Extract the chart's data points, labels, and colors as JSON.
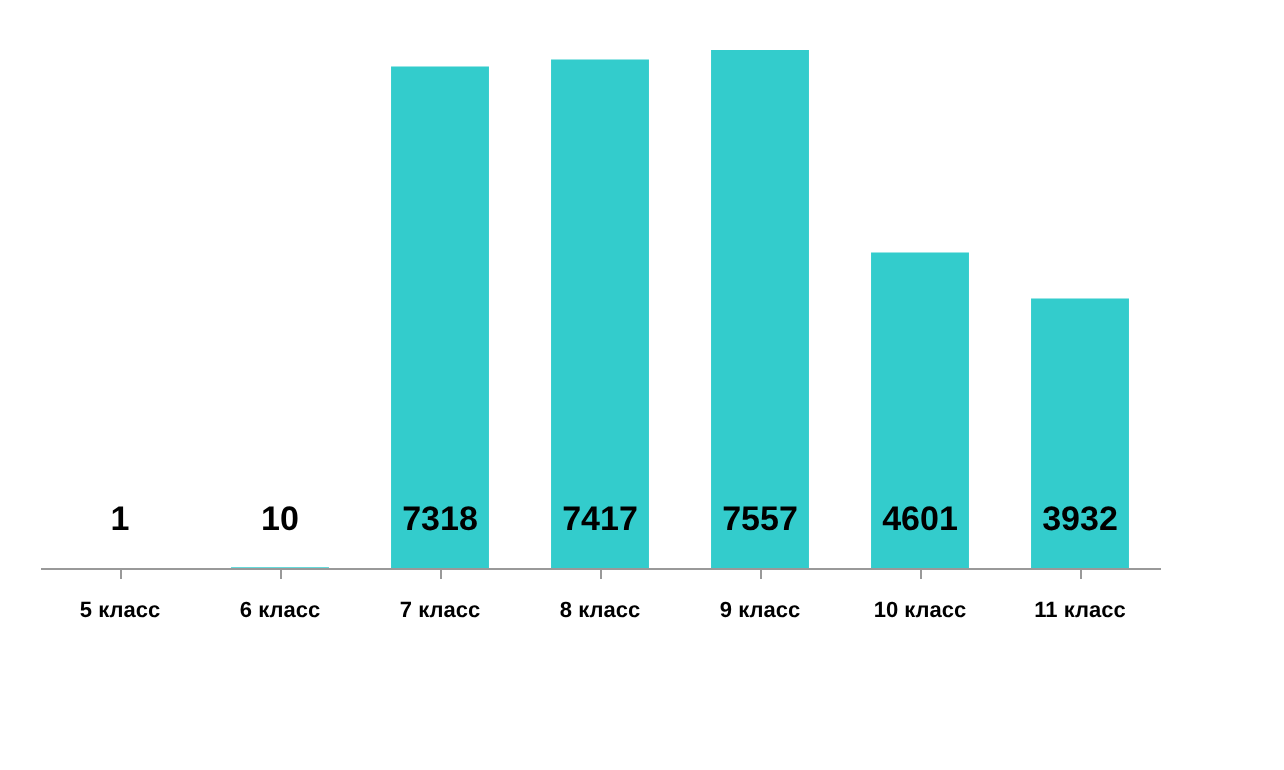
{
  "chart_data": {
    "type": "bar",
    "categories": [
      "5 класс",
      "6 класс",
      "7 класс",
      "8 класс",
      "9 класс",
      "10 класс",
      "11 класс"
    ],
    "values": [
      1,
      10,
      7318,
      7417,
      7557,
      4601,
      3932
    ],
    "color": "#33cccc",
    "data_labels": true,
    "grid": false
  }
}
